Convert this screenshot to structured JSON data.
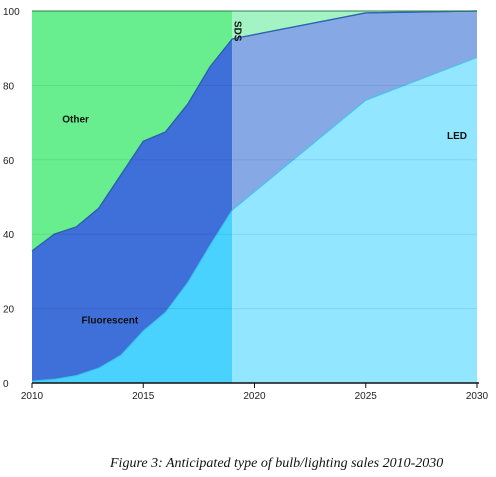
{
  "caption": "Figure 3: Anticipated type of bulb/lighting sales 2010-2030",
  "chart_data": {
    "type": "area",
    "stacked": true,
    "title": "",
    "xlabel": "",
    "ylabel": "",
    "xlim": [
      2010,
      2030
    ],
    "ylim": [
      0,
      100
    ],
    "x_ticks": [
      "2010",
      "2015",
      "2020",
      "2025",
      "2030"
    ],
    "y_ticks": [
      "0",
      "20",
      "40",
      "60",
      "80",
      "100"
    ],
    "grid": true,
    "forecast_start": 2019,
    "x": [
      2010,
      2011,
      2012,
      2013,
      2014,
      2015,
      2016,
      2017,
      2018,
      2019,
      2025,
      2030
    ],
    "series": [
      {
        "name": "LED",
        "color_actual": "#4ad2ff",
        "color_forecast": "#93e6ff",
        "values": [
          0.5,
          1,
          2,
          4,
          7.5,
          14,
          19,
          27,
          37,
          46.5,
          76,
          87.5
        ]
      },
      {
        "name": "Fluorescent",
        "color_actual": "#3f6fd9",
        "color_forecast": "#86a9e6",
        "values": [
          35,
          39,
          40,
          43,
          48.5,
          51,
          48.5,
          48,
          48,
          46,
          23.5,
          12.5
        ]
      },
      {
        "name": "SDS",
        "color_actual": "#2c5fb0",
        "color_forecast": "#2c5fb0",
        "values": [
          0,
          0,
          0,
          0,
          0,
          0,
          0,
          0,
          0,
          0,
          0,
          0
        ]
      },
      {
        "name": "Other",
        "color_actual": "#68ee8e",
        "color_forecast": "#a3f3c5",
        "values": [
          64.5,
          60,
          58,
          53,
          44,
          35,
          32.5,
          25,
          15,
          7.5,
          0.5,
          0
        ]
      }
    ]
  }
}
